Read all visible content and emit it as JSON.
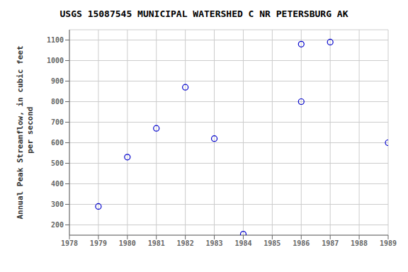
{
  "chart_data": {
    "type": "scatter",
    "title": "USGS 15087545 MUNICIPAL WATERSHED C NR PETERSBURG AK",
    "ylabel": "Annual Peak Streamflow, in cubic feet\n per second",
    "x": [
      1979,
      1980,
      1982,
      1981,
      1983,
      1984,
      1986,
      1987,
      1989,
      1986
    ],
    "values": [
      290,
      530,
      870,
      670,
      620,
      155,
      1080,
      1090,
      600,
      800
    ],
    "xlim": [
      1978,
      1989
    ],
    "ylim": [
      150,
      1150
    ],
    "xticks": [
      1978,
      1979,
      1980,
      1981,
      1982,
      1983,
      1984,
      1985,
      1986,
      1987,
      1988,
      1989
    ],
    "yticks": [
      200,
      300,
      400,
      500,
      600,
      700,
      800,
      900,
      1000,
      1100
    ],
    "color": "#0000cc",
    "grid": true
  }
}
